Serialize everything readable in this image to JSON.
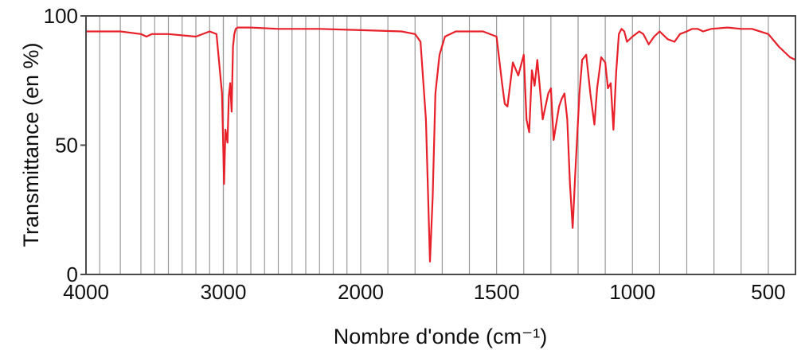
{
  "chart_data": {
    "type": "line",
    "title": "",
    "xlabel": "Nombre d'onde (cm⁻¹)",
    "ylabel": "Transmittance (en %)",
    "xlim": [
      4000,
      400
    ],
    "ylim": [
      0,
      100
    ],
    "x_reversed": true,
    "x_scale": "piecewise: 4000–2000 at half the scale of 2000–400",
    "grid": "vertical lines only",
    "legend": "none",
    "x_ticks": [
      4000,
      3000,
      2000,
      1500,
      1000,
      500
    ],
    "x_tick_labels": [
      "4000",
      "3000",
      "2000",
      "1500",
      "1000",
      "500"
    ],
    "y_ticks": [
      0,
      50,
      100
    ],
    "y_tick_labels": [
      "0",
      "50",
      "100"
    ],
    "grid_x": [
      3900,
      3750,
      3600,
      3500,
      3400,
      3300,
      3200,
      3100,
      3000,
      2900,
      2800,
      2700,
      2600,
      2500,
      2400,
      2300,
      2200,
      2100,
      1900,
      1800,
      1700,
      1600,
      1400,
      1300,
      1200,
      1100,
      900,
      800,
      700,
      600
    ],
    "series": [
      {
        "color": "#e8202a",
        "x": [
          4000,
          3750,
          3600,
          3560,
          3520,
          3400,
          3200,
          3100,
          3050,
          3010,
          2995,
          2985,
          2970,
          2960,
          2950,
          2940,
          2930,
          2920,
          2910,
          2895,
          2870,
          2800,
          2600,
          2300,
          2000,
          1850,
          1800,
          1780,
          1760,
          1745,
          1735,
          1725,
          1710,
          1690,
          1650,
          1550,
          1500,
          1480,
          1470,
          1460,
          1440,
          1420,
          1400,
          1390,
          1380,
          1370,
          1360,
          1350,
          1330,
          1310,
          1300,
          1290,
          1270,
          1260,
          1250,
          1240,
          1230,
          1220,
          1210,
          1195,
          1185,
          1170,
          1155,
          1140,
          1130,
          1115,
          1100,
          1090,
          1080,
          1070,
          1060,
          1050,
          1040,
          1030,
          1020,
          1000,
          975,
          960,
          940,
          920,
          900,
          870,
          845,
          825,
          800,
          780,
          760,
          740,
          710,
          650,
          600,
          560,
          500,
          460,
          420,
          400
        ],
        "y": [
          94,
          94,
          93,
          92,
          93,
          93,
          92,
          94,
          93,
          70,
          35,
          56,
          51,
          69,
          74,
          63,
          88,
          93,
          95,
          95.5,
          95.5,
          95.5,
          95,
          95,
          94.5,
          94,
          93,
          90,
          60,
          5,
          30,
          70,
          85,
          92,
          94,
          94,
          92,
          74,
          66,
          65,
          82,
          77,
          85,
          60,
          55,
          79,
          73,
          83,
          60,
          70,
          72,
          52,
          65,
          68,
          70,
          60,
          35,
          18,
          40,
          70,
          83,
          85,
          70,
          58,
          72,
          84,
          82,
          72,
          74,
          56,
          78,
          93,
          95,
          94,
          90,
          92,
          94,
          93,
          89,
          92,
          94,
          91,
          90,
          93,
          94,
          95,
          95,
          94,
          95,
          95.5,
          95,
          95,
          93,
          88,
          84,
          83
        ]
      }
    ]
  }
}
